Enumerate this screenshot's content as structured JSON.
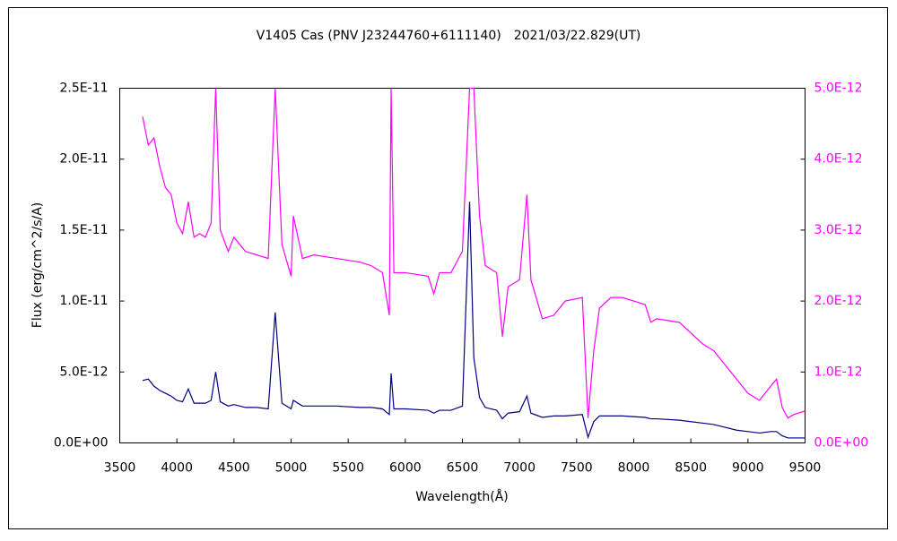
{
  "chart_data": {
    "type": "line",
    "title": "V1405 Cas (PNV J23244760+6111140)　2021/03/22.829(UT)",
    "x_label": "Wavelength(Å)",
    "y_label": "Flux (erg/cm^2/s/A)",
    "xlim": [
      3500,
      9500
    ],
    "xticks": [
      3500,
      4000,
      4500,
      5000,
      5500,
      6000,
      6500,
      7000,
      7500,
      8000,
      8500,
      9000,
      9500
    ],
    "ylim": [
      0,
      2.5e-11
    ],
    "yticks": [
      {
        "value": 0,
        "label": "0.0E+00"
      },
      {
        "value": 5e-12,
        "label": "5.0E-12"
      },
      {
        "value": 1e-11,
        "label": "1.0E-11"
      },
      {
        "value": 1.5e-11,
        "label": "1.5E-11"
      },
      {
        "value": 2e-11,
        "label": "2.0E-11"
      },
      {
        "value": 2.5e-11,
        "label": "2.5E-11"
      }
    ],
    "y2lim": [
      0,
      5e-12
    ],
    "y2ticks": [
      {
        "value": 0,
        "label": "0.0E+00"
      },
      {
        "value": 1e-12,
        "label": "1.0E-12"
      },
      {
        "value": 2e-12,
        "label": "2.0E-12"
      },
      {
        "value": 3e-12,
        "label": "3.0E-12"
      },
      {
        "value": 4e-12,
        "label": "4.0E-12"
      },
      {
        "value": 5e-12,
        "label": "5.0E-12"
      }
    ],
    "grid": false,
    "x": [
      3700,
      3750,
      3800,
      3850,
      3900,
      3950,
      4000,
      4050,
      4100,
      4150,
      4200,
      4250,
      4300,
      4340,
      4380,
      4450,
      4500,
      4600,
      4700,
      4800,
      4861,
      4920,
      5000,
      5020,
      5100,
      5200,
      5400,
      5600,
      5700,
      5800,
      5860,
      5876,
      5900,
      6000,
      6200,
      6250,
      6300,
      6400,
      6500,
      6563,
      6600,
      6650,
      6700,
      6800,
      6850,
      6900,
      7000,
      7065,
      7100,
      7200,
      7300,
      7400,
      7550,
      7600,
      7650,
      7700,
      7800,
      7900,
      8100,
      8150,
      8200,
      8400,
      8500,
      8600,
      8700,
      8800,
      8900,
      9000,
      9100,
      9200,
      9250,
      9300,
      9350,
      9400,
      9500
    ],
    "series": [
      {
        "color": "#ff00ff",
        "axis": "y2",
        "values": [
          4.6e-12,
          4.2e-12,
          4.3e-12,
          3.9e-12,
          3.6e-12,
          3.5e-12,
          3.1e-12,
          2.95e-12,
          3.4e-12,
          2.9e-12,
          2.95e-12,
          2.9e-12,
          3.1e-12,
          5e-12,
          3e-12,
          2.7e-12,
          2.9e-12,
          2.7e-12,
          2.65e-12,
          2.6e-12,
          5e-12,
          2.8e-12,
          2.35e-12,
          3.2e-12,
          2.6e-12,
          2.65e-12,
          2.6e-12,
          2.55e-12,
          2.5e-12,
          2.4e-12,
          1.8e-12,
          5e-12,
          2.4e-12,
          2.4e-12,
          2.35e-12,
          2.1e-12,
          2.4e-12,
          2.4e-12,
          2.7e-12,
          5e-12,
          5e-12,
          3.2e-12,
          2.5e-12,
          2.4e-12,
          1.5e-12,
          2.2e-12,
          2.3e-12,
          3.5e-12,
          2.3e-12,
          1.75e-12,
          1.8e-12,
          2e-12,
          2.05e-12,
          3.5e-13,
          1.3e-12,
          1.9e-12,
          2.05e-12,
          2.05e-12,
          1.95e-12,
          1.7e-12,
          1.75e-12,
          1.7e-12,
          1.55e-12,
          1.4e-12,
          1.3e-12,
          1.1e-12,
          9e-13,
          7e-13,
          6e-13,
          8e-13,
          9e-13,
          5e-13,
          3.5e-13,
          4e-13,
          4.5e-13
        ]
      },
      {
        "color": "#000080",
        "values": [
          4.4e-12,
          4.5e-12,
          4e-12,
          3.7e-12,
          3.5e-12,
          3.3e-12,
          3e-12,
          2.9e-12,
          3.8e-12,
          2.8e-12,
          2.8e-12,
          2.8e-12,
          3e-12,
          5e-12,
          2.9e-12,
          2.6e-12,
          2.7e-12,
          2.5e-12,
          2.5e-12,
          2.4e-12,
          9.2e-12,
          2.8e-12,
          2.4e-12,
          3e-12,
          2.6e-12,
          2.6e-12,
          2.6e-12,
          2.5e-12,
          2.5e-12,
          2.4e-12,
          2e-12,
          4.9e-12,
          2.4e-12,
          2.4e-12,
          2.3e-12,
          2.1e-12,
          2.3e-12,
          2.3e-12,
          2.6e-12,
          1.7e-11,
          6e-12,
          3.2e-12,
          2.5e-12,
          2.3e-12,
          1.7e-12,
          2.1e-12,
          2.2e-12,
          3.3e-12,
          2.1e-12,
          1.8e-12,
          1.9e-12,
          1.9e-12,
          2e-12,
          4e-13,
          1.5e-12,
          1.9e-12,
          1.9e-12,
          1.9e-12,
          1.8e-12,
          1.7e-12,
          1.7e-12,
          1.6e-12,
          1.5e-12,
          1.4e-12,
          1.3e-12,
          1.1e-12,
          9e-13,
          8e-13,
          7e-13,
          8e-13,
          8e-13,
          5e-13,
          3.5e-13,
          3.5e-13,
          3.5e-13
        ]
      }
    ]
  }
}
